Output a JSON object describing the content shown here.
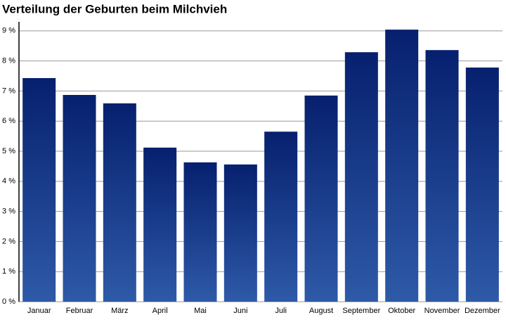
{
  "chart_data": {
    "type": "bar",
    "title": "Verteilung der Geburten beim Milchvieh",
    "categories": [
      "Januar",
      "Februar",
      "März",
      "April",
      "Mai",
      "Juni",
      "Juli",
      "August",
      "September",
      "Oktober",
      "November",
      "Dezember"
    ],
    "values": [
      7.43,
      6.87,
      6.59,
      5.12,
      4.63,
      4.56,
      5.65,
      6.85,
      8.29,
      9.04,
      8.36,
      7.78
    ],
    "gradient": [
      "#06206e",
      "#2e5aa8"
    ],
    "ylim": [
      0,
      9.3
    ],
    "yticks": [
      {
        "value": 0,
        "label": "0 %"
      },
      {
        "value": 1,
        "label": "1 %"
      },
      {
        "value": 2,
        "label": "2 %"
      },
      {
        "value": 3,
        "label": "3 %"
      },
      {
        "value": 4,
        "label": "4 %"
      },
      {
        "value": 5,
        "label": "5 %"
      },
      {
        "value": 6,
        "label": "6 %"
      },
      {
        "value": 7,
        "label": "7 %"
      },
      {
        "value": 8,
        "label": "8 %"
      },
      {
        "value": 9,
        "label": "9 %"
      }
    ],
    "grid": true
  }
}
